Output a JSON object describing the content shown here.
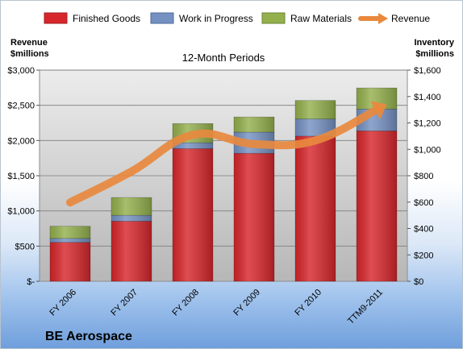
{
  "chart_data": {
    "type": "bar",
    "subtitle": "12-Month Periods",
    "company": "BE Aerospace",
    "categories": [
      "FY 2006",
      "FY 2007",
      "FY 2008",
      "FY 2009",
      "FY 2010",
      "TTM9-2011"
    ],
    "stacked": true,
    "left_axis": {
      "title_line1": "Revenue",
      "title_line2": "$millions",
      "ylim": [
        0,
        3000
      ],
      "ticks": [
        0,
        500,
        1000,
        1500,
        2000,
        2500,
        3000
      ],
      "tick_labels": [
        "$-",
        "$500",
        "$1,000",
        "$1,500",
        "$2,000",
        "$2,500",
        "$3,000"
      ]
    },
    "right_axis": {
      "title_line1": "Inventory",
      "title_line2": "$millions",
      "ylim": [
        0,
        1600
      ],
      "ticks": [
        0,
        200,
        400,
        600,
        800,
        1000,
        1200,
        1400,
        1600
      ],
      "tick_labels": [
        "$0",
        "$200",
        "$400",
        "$600",
        "$800",
        "$1,000",
        "$1,200",
        "$1,400",
        "$1,600"
      ]
    },
    "series": [
      {
        "name": "Finished Goods",
        "axis": "right",
        "type": "bar",
        "color": "#d7262b",
        "values": [
          295,
          455,
          1005,
          970,
          1100,
          1140
        ]
      },
      {
        "name": "Work in Progress",
        "axis": "right",
        "type": "bar",
        "color": "#7591c2",
        "values": [
          30,
          45,
          45,
          160,
          130,
          165
        ]
      },
      {
        "name": "Raw Materials",
        "axis": "right",
        "type": "bar",
        "color": "#94b04d",
        "values": [
          92,
          135,
          145,
          115,
          140,
          160
        ]
      },
      {
        "name": "Revenue",
        "axis": "left",
        "type": "line",
        "color": "#e8893e",
        "values": [
          1120,
          1560,
          2080,
          1950,
          2000,
          2440
        ]
      }
    ],
    "legend_position": "top",
    "grid": true
  }
}
